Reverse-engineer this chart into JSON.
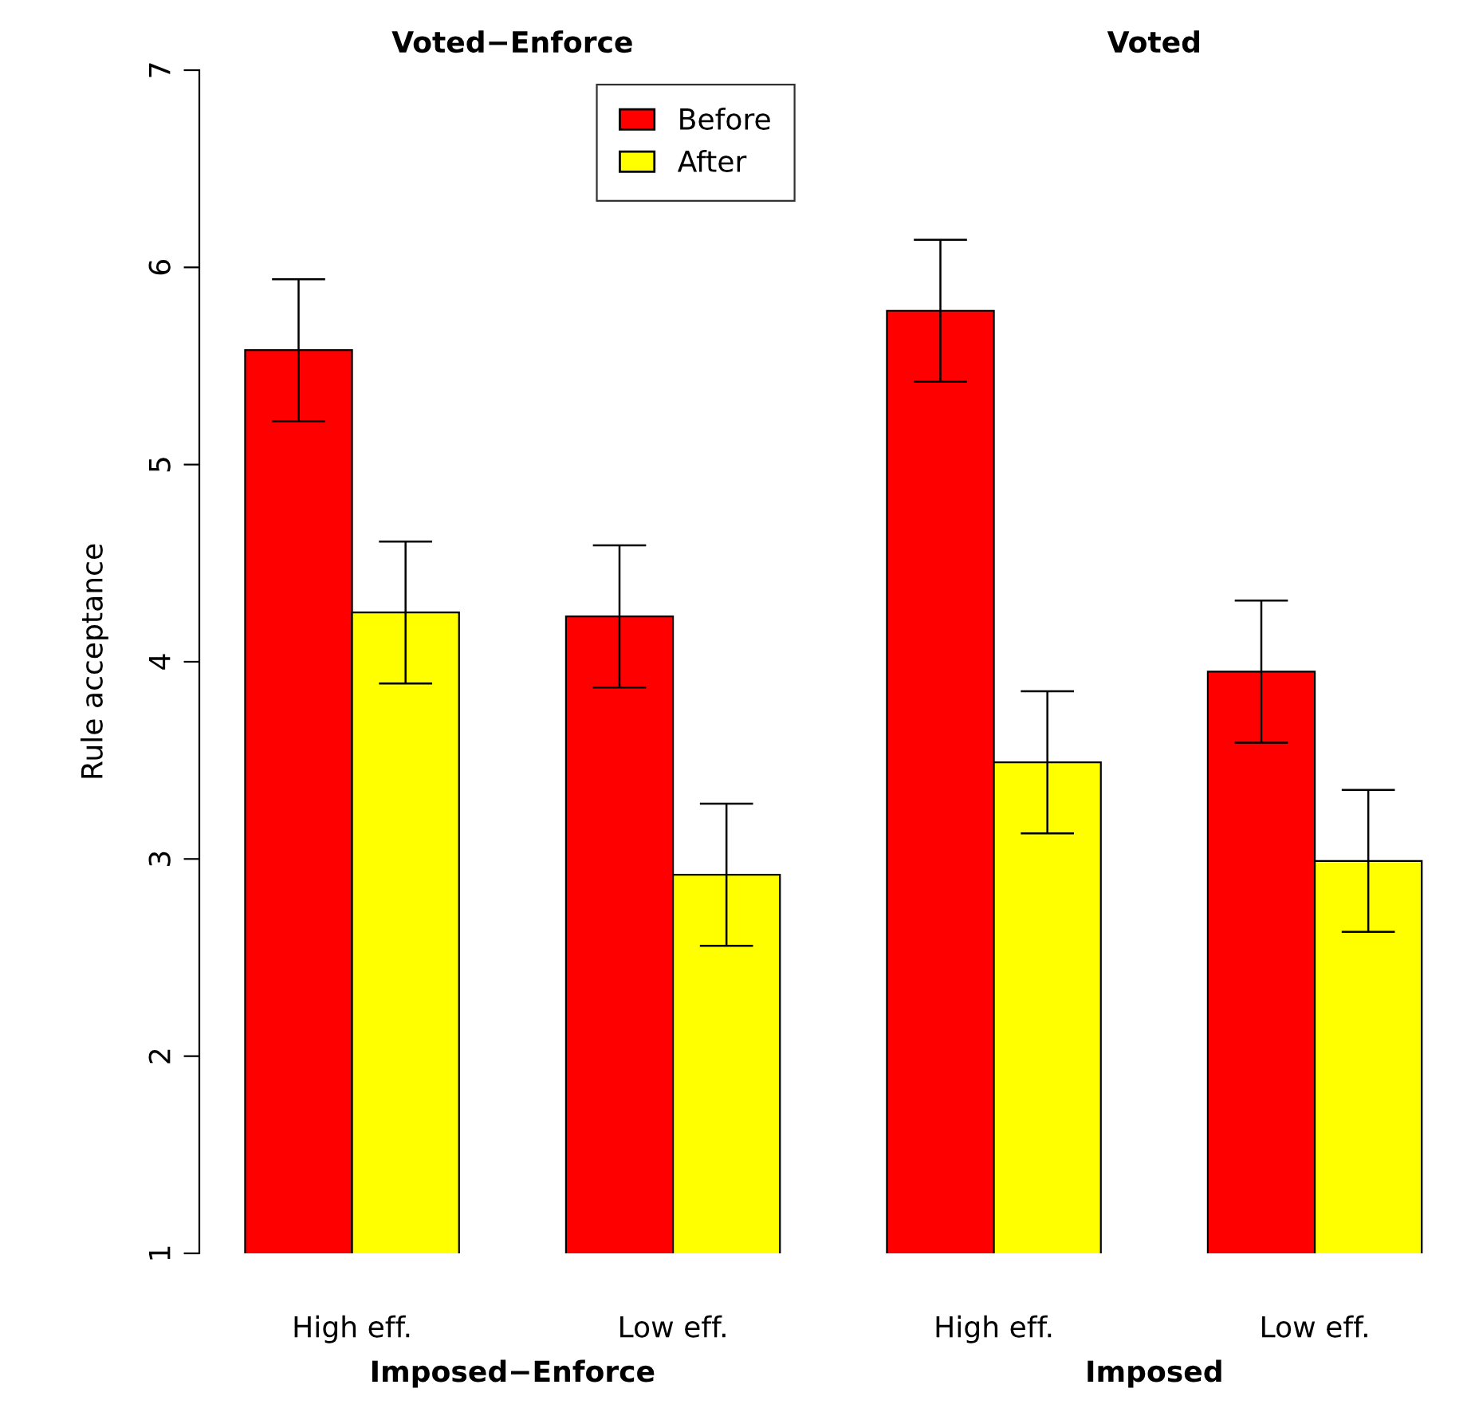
{
  "chart_data": {
    "type": "bar",
    "categories": [
      "High eff.",
      "Low eff.",
      "High eff.",
      "Low eff."
    ],
    "series": [
      {
        "name": "Before",
        "color": "#ff0000",
        "values": [
          5.58,
          4.23,
          5.78,
          3.95
        ],
        "errors": [
          0.36,
          0.36,
          0.36,
          0.36
        ]
      },
      {
        "name": "After",
        "color": "#ffff00",
        "values": [
          4.25,
          2.92,
          3.49,
          2.99
        ],
        "errors": [
          0.36,
          0.36,
          0.36,
          0.36
        ]
      }
    ],
    "ylabel": "Rule acceptance",
    "ylim": [
      1,
      7
    ],
    "yticks": [
      1,
      2,
      3,
      4,
      5,
      6,
      7
    ],
    "annotations": [
      "Voted−Enforce",
      "Voted",
      "Imposed−Enforce",
      "Imposed"
    ],
    "legend": "top",
    "grid": false
  }
}
